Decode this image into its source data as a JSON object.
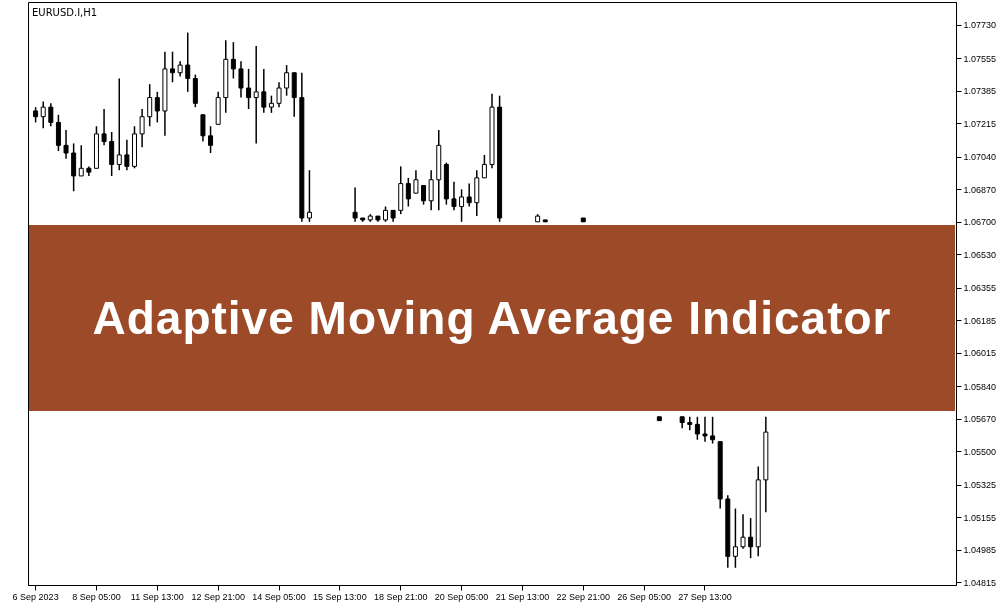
{
  "chart_data": {
    "type": "candlestick",
    "title": "EURUSD.I,H1",
    "subtitle": "Adaptive Moving Average Indicator",
    "color": "#000000",
    "categories": [
      "6 Sep 2023",
      null,
      null,
      null,
      null,
      null,
      null,
      null,
      "8 Sep 05:00",
      null,
      null,
      null,
      null,
      null,
      null,
      null,
      "11 Sep 13:00",
      null,
      null,
      null,
      null,
      null,
      null,
      null,
      "12 Sep 21:00",
      null,
      null,
      null,
      null,
      null,
      null,
      null,
      "14 Sep 05:00",
      null,
      null,
      null,
      null,
      null,
      null,
      null,
      "15 Sep 13:00",
      null,
      null,
      null,
      null,
      null,
      null,
      null,
      "18 Sep 21:00",
      null,
      null,
      null,
      null,
      null,
      null,
      null,
      "20 Sep 05:00",
      null,
      null,
      null,
      null,
      null,
      null,
      null,
      "21 Sep 13:00",
      null,
      null,
      null,
      null,
      null,
      null,
      null,
      "22 Sep 21:00",
      null,
      null,
      null,
      null,
      null,
      null,
      null,
      "26 Sep 05:00",
      null,
      null,
      null,
      null,
      null,
      null,
      null,
      "27 Sep 13:00",
      null,
      null,
      null,
      null,
      null,
      null,
      null,
      null,
      null,
      null,
      null,
      null,
      null,
      null,
      null,
      null,
      null,
      null,
      null,
      null,
      null,
      null,
      null,
      null,
      null,
      null,
      null,
      null,
      null,
      null,
      null,
      null
    ],
    "ohlc": [
      [
        1.0728,
        1.073,
        1.0722,
        1.0725
      ],
      [
        1.0725,
        1.0733,
        1.0719,
        1.073
      ],
      [
        1.073,
        1.0732,
        1.072,
        1.0722
      ],
      [
        1.0722,
        1.0726,
        1.0707,
        1.071
      ],
      [
        1.071,
        1.0718,
        1.0703,
        1.0706
      ],
      [
        1.0706,
        1.0711,
        1.0686,
        1.0694
      ],
      [
        1.0694,
        1.071,
        1.0694,
        1.0698
      ],
      [
        1.0698,
        1.0699,
        1.0694,
        1.0696
      ],
      [
        1.0698,
        1.072,
        1.0698,
        1.0716
      ],
      [
        1.0716,
        1.0729,
        1.071,
        1.0712
      ],
      [
        1.0712,
        1.0717,
        1.0694,
        1.07
      ],
      [
        1.07,
        1.0745,
        1.0697,
        1.0705
      ],
      [
        1.0705,
        1.0713,
        1.0697,
        1.0699
      ],
      [
        1.0699,
        1.072,
        1.0698,
        1.0716
      ],
      [
        1.0716,
        1.0729,
        1.0709,
        1.0725
      ],
      [
        1.0725,
        1.0742,
        1.072,
        1.0735
      ],
      [
        1.0735,
        1.0738,
        1.0722,
        1.0728
      ],
      [
        1.0728,
        1.0759,
        1.0715,
        1.075
      ],
      [
        1.075,
        1.0759,
        1.0743,
        1.0748
      ],
      [
        1.0748,
        1.0754,
        1.0746,
        1.0752
      ],
      [
        1.0752,
        1.0769,
        1.0738,
        1.0745
      ],
      [
        1.0745,
        1.0747,
        1.073,
        1.0732
      ],
      [
        1.0726,
        1.0726,
        1.0712,
        1.0715
      ],
      [
        1.0715,
        1.072,
        1.0706,
        1.071
      ],
      [
        1.0721,
        1.0738,
        1.0721,
        1.0735
      ],
      [
        1.0735,
        1.0765,
        1.0727,
        1.0755
      ],
      [
        1.0755,
        1.0764,
        1.0745,
        1.075
      ],
      [
        1.075,
        1.0754,
        1.0735,
        1.074
      ],
      [
        1.074,
        1.075,
        1.0729,
        1.0735
      ],
      [
        1.0735,
        1.0762,
        1.0711,
        1.0738
      ],
      [
        1.0738,
        1.075,
        1.0727,
        1.073
      ],
      [
        1.073,
        1.0736,
        1.0727,
        1.0732
      ],
      [
        1.0732,
        1.0743,
        1.073,
        1.074
      ],
      [
        1.074,
        1.0752,
        1.0736,
        1.0748
      ],
      [
        1.0748,
        1.0748,
        1.0725,
        1.0735
      ],
      [
        1.0735,
        1.0748,
        1.067,
        1.0672
      ],
      [
        1.0672,
        1.0697,
        1.067,
        1.0675
      ],
      null,
      null,
      null,
      null,
      null,
      [
        1.0675,
        1.0688,
        1.067,
        1.0672
      ],
      [
        1.0672,
        1.0672,
        1.067,
        1.0671
      ],
      [
        1.0671,
        1.0674,
        1.067,
        1.0673
      ],
      [
        1.0673,
        1.0673,
        1.067,
        1.0671
      ],
      [
        1.0671,
        1.0678,
        1.067,
        1.0676
      ],
      [
        1.0676,
        1.0676,
        1.067,
        1.0672
      ],
      [
        1.0676,
        1.0699,
        1.0674,
        1.069
      ],
      [
        1.069,
        1.0693,
        1.0678,
        1.0682
      ],
      [
        1.0685,
        1.0697,
        1.0685,
        1.0692
      ],
      [
        1.0689,
        1.0689,
        1.0679,
        1.0681
      ],
      [
        1.0681,
        1.0697,
        1.0676,
        1.0692
      ],
      [
        1.0692,
        1.0718,
        1.0676,
        1.071
      ],
      [
        1.07,
        1.0701,
        1.0679,
        1.0682
      ],
      [
        1.0682,
        1.0691,
        1.0676,
        1.0678
      ],
      [
        1.0678,
        1.0687,
        1.067,
        1.0683
      ],
      [
        1.0683,
        1.069,
        1.0678,
        1.068
      ],
      [
        1.068,
        1.0697,
        1.0673,
        1.0693
      ],
      [
        1.0693,
        1.0705,
        1.0693,
        1.07
      ],
      [
        1.07,
        1.0737,
        1.0698,
        1.073
      ],
      [
        1.073,
        1.0736,
        1.067,
        1.0672
      ],
      null,
      null,
      null,
      null,
      [
        1.067,
        1.0674,
        1.067,
        1.0673
      ],
      [
        1.0671,
        1.0671,
        1.067,
        1.067
      ],
      null,
      null,
      null,
      null,
      [
        1.0672,
        1.0672,
        1.067,
        1.067
      ],
      null,
      null,
      null,
      null,
      null,
      null,
      null,
      null,
      null,
      [
        1.0568,
        1.0568,
        1.0566,
        1.0566
      ],
      null,
      null,
      [
        1.0568,
        1.0568,
        1.0562,
        1.0565
      ],
      [
        1.0565,
        1.0568,
        1.0561,
        1.0564
      ],
      [
        1.0564,
        1.0568,
        1.0556,
        1.0559
      ],
      [
        1.0559,
        1.0568,
        1.0555,
        1.0558
      ],
      [
        1.0558,
        1.0568,
        1.0554,
        1.0556
      ],
      [
        1.0555,
        1.0555,
        1.052,
        1.0525
      ],
      [
        1.0525,
        1.0527,
        1.0489,
        1.0495
      ],
      [
        1.0495,
        1.052,
        1.0489,
        1.05
      ],
      [
        1.05,
        1.0517,
        1.0499,
        1.0505
      ],
      [
        1.0505,
        1.0515,
        1.0494,
        1.05
      ],
      [
        1.05,
        1.0542,
        1.0495,
        1.0535
      ],
      [
        1.0535,
        1.0568,
        1.0518,
        1.056
      ],
      null,
      null,
      null,
      null,
      null,
      null,
      null,
      null,
      null,
      null,
      null,
      null,
      null,
      null,
      null,
      null,
      null,
      null,
      null,
      null,
      null,
      null,
      null,
      null
    ],
    "ylim": [
      1.048,
      1.0785
    ],
    "yticks": [
      {
        "value": 1.0773,
        "label": "1.07730"
      },
      1.07555,
      1.07385,
      1.07215,
      {
        "value": 1.0704,
        "label": "1.07040"
      },
      {
        "value": 1.0687,
        "label": "1.06870"
      },
      {
        "value": 1.067,
        "label": "1.06700"
      },
      {
        "value": 1.0653,
        "label": "1.06530"
      },
      1.06355,
      1.06185,
      1.06015,
      {
        "value": 1.0584,
        "label": "1.05840"
      },
      {
        "value": 1.0567,
        "label": "1.05670"
      },
      {
        "value": 1.055,
        "label": "1.05500"
      },
      1.05325,
      1.05155,
      1.04985,
      1.04815
    ]
  }
}
